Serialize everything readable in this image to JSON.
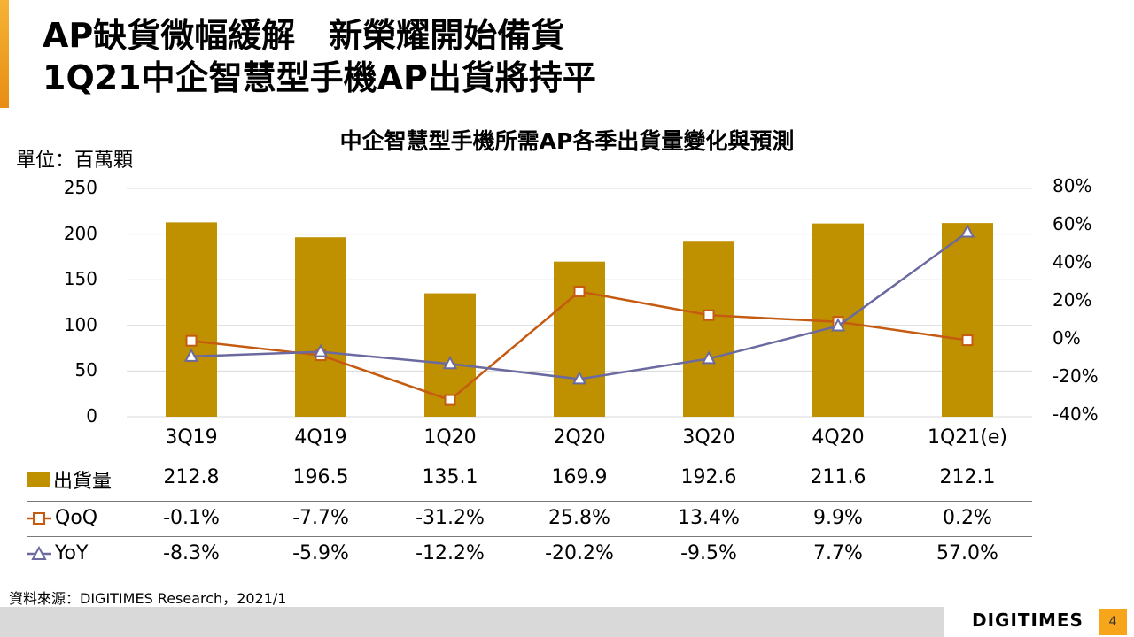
{
  "slide": {
    "title_line1": "AP缺貨微幅緩解　新榮耀開始備貨",
    "title_line2": "1Q21中企智慧型手機AP出貨將持平",
    "unit": "單位：百萬顆",
    "source": "資料來源：DIGITIMES Research，2021/1",
    "logo": "DIGITIMES",
    "page_number": "4",
    "accent_color": "#f7a61b"
  },
  "chart_data": {
    "type": "bar",
    "title": "中企智慧型手機所需AP各季出貨量變化與預測",
    "categories": [
      "3Q19",
      "4Q19",
      "1Q20",
      "2Q20",
      "3Q20",
      "4Q20",
      "1Q21(e)"
    ],
    "ylim": [
      0,
      250
    ],
    "yticks": [
      "250",
      "200",
      "150",
      "100",
      "50",
      "0"
    ],
    "y2lim": [
      -40,
      80
    ],
    "y2ticks": [
      "80%",
      "60%",
      "40%",
      "20%",
      "0%",
      "-20%",
      "-40%"
    ],
    "grid": true,
    "series": [
      {
        "name": "出貨量",
        "kind": "bar",
        "color": "#bf9000",
        "values": [
          212.8,
          196.5,
          135.1,
          169.9,
          192.6,
          211.6,
          212.1
        ],
        "labels": [
          "212.8",
          "196.5",
          "135.1",
          "169.9",
          "192.6",
          "211.6",
          "212.1"
        ]
      },
      {
        "name": "QoQ",
        "kind": "line",
        "axis": "secondary",
        "marker": "square",
        "color": "#c55a11",
        "values": [
          -0.1,
          -7.7,
          -31.2,
          25.8,
          13.4,
          9.9,
          0.2
        ],
        "labels": [
          "-0.1%",
          "-7.7%",
          "-31.2%",
          "25.8%",
          "13.4%",
          "9.9%",
          "0.2%"
        ]
      },
      {
        "name": "YoY",
        "kind": "line",
        "axis": "secondary",
        "marker": "triangle",
        "color": "#6a6aa0",
        "values": [
          -8.3,
          -5.9,
          -12.2,
          -20.2,
          -9.5,
          7.7,
          57.0
        ],
        "labels": [
          "-8.3%",
          "-5.9%",
          "-12.2%",
          "-20.2%",
          "-9.5%",
          "7.7%",
          "57.0%"
        ]
      }
    ]
  }
}
